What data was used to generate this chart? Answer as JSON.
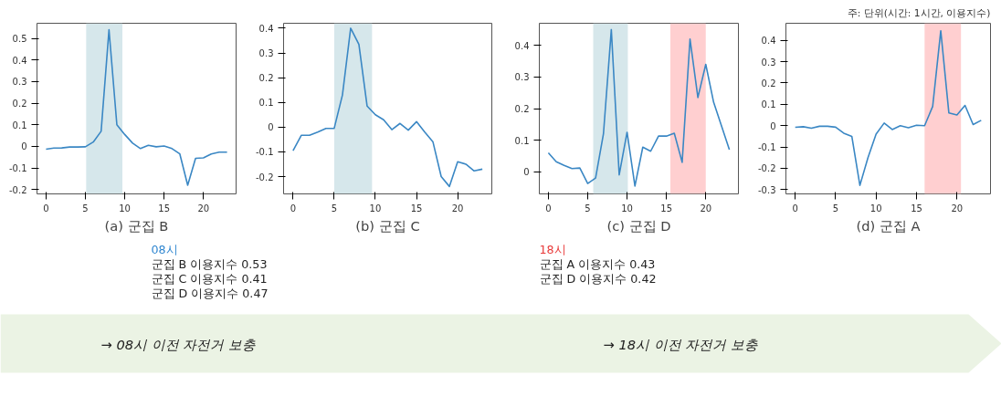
{
  "chart_data": [
    {
      "type": "line",
      "xlabel": "(a) 군집 B",
      "x": [
        0,
        1,
        2,
        3,
        4,
        5,
        6,
        7,
        8,
        9,
        10,
        11,
        12,
        13,
        14,
        15,
        16,
        17,
        18,
        19,
        20,
        21,
        22,
        23
      ],
      "series": [
        {
          "color": "#3a87c4",
          "values": [
            -0.013,
            -0.008,
            -0.007,
            -0.003,
            -0.003,
            -0.002,
            0.02,
            0.07,
            0.54,
            0.1,
            0.055,
            0.015,
            -0.01,
            0.005,
            -0.002,
            0.002,
            -0.01,
            -0.035,
            -0.18,
            -0.055,
            -0.053,
            -0.035,
            -0.027,
            -0.027
          ]
        }
      ],
      "xlim": [
        -1.15,
        24.15
      ],
      "xticks": [
        0,
        5,
        10,
        15,
        20
      ],
      "ylim": [
        -0.22,
        0.57
      ],
      "yticks": [
        -0.2,
        -0.1,
        0.0,
        0.1,
        0.2,
        0.3,
        0.4,
        0.5
      ],
      "bands": [
        {
          "axis": "x",
          "from": 5.1,
          "to": 9.7,
          "color": "#d6e7eb"
        }
      ],
      "grid": false,
      "annotations": [
        "08시",
        "군집 B 이용지수 0.53",
        "군집 C 이용지수 0.41",
        "군집 D 이용지수 0.47",
        "→ 08시 이전 자전거 보충"
      ]
    },
    {
      "type": "line",
      "xlabel": "(b) 군집 C",
      "x": [
        0,
        1,
        2,
        3,
        4,
        5,
        6,
        7,
        8,
        9,
        10,
        11,
        12,
        13,
        14,
        15,
        16,
        17,
        18,
        19,
        20,
        21,
        22,
        23
      ],
      "series": [
        {
          "color": "#3a87c4",
          "values": [
            -0.095,
            -0.033,
            -0.033,
            -0.02,
            -0.005,
            -0.005,
            0.13,
            0.4,
            0.335,
            0.085,
            0.05,
            0.03,
            -0.01,
            0.015,
            -0.012,
            0.022,
            -0.02,
            -0.06,
            -0.2,
            -0.24,
            -0.14,
            -0.15,
            -0.177,
            -0.17
          ]
        }
      ],
      "xlim": [
        -1.15,
        24.15
      ],
      "xticks": [
        0,
        5,
        10,
        15,
        20
      ],
      "ylim": [
        -0.27,
        0.42
      ],
      "yticks": [
        -0.2,
        -0.1,
        0.0,
        0.1,
        0.2,
        0.3,
        0.4
      ],
      "bands": [
        {
          "axis": "x",
          "from": 5.0,
          "to": 9.6,
          "color": "#d6e7eb"
        }
      ],
      "grid": false
    },
    {
      "type": "line",
      "xlabel": "(c) 군집 D",
      "x": [
        0,
        1,
        2,
        3,
        4,
        5,
        6,
        7,
        8,
        9,
        10,
        11,
        12,
        13,
        14,
        15,
        16,
        17,
        18,
        19,
        20,
        21,
        22,
        23
      ],
      "series": [
        {
          "color": "#3a87c4",
          "values": [
            0.06,
            0.032,
            0.02,
            0.01,
            0.012,
            -0.037,
            -0.02,
            0.12,
            0.45,
            -0.01,
            0.125,
            -0.045,
            0.078,
            0.065,
            0.113,
            0.113,
            0.122,
            0.03,
            0.42,
            0.235,
            0.34,
            0.22,
            0.145,
            0.07
          ]
        }
      ],
      "xlim": [
        -1.15,
        24.15
      ],
      "xticks": [
        0,
        5,
        10,
        15,
        20
      ],
      "ylim": [
        -0.07,
        0.47
      ],
      "yticks": [
        0.0,
        0.1,
        0.2,
        0.3,
        0.4
      ],
      "bands": [
        {
          "axis": "x",
          "from": 5.7,
          "to": 10.1,
          "color": "#d6e7eb"
        },
        {
          "axis": "x",
          "from": 15.5,
          "to": 20.0,
          "color": "#ffcfd0"
        }
      ],
      "grid": false,
      "annotations": [
        "18시",
        "군집 A 이용지수 0.43",
        "군집 D 이용지수 0.42",
        "→ 18시 이전 자전거 보충"
      ]
    },
    {
      "type": "line",
      "xlabel": "(d) 군집 A",
      "subtitle": "주: 단위(시간: 1시간, 이용지수)",
      "x": [
        0,
        1,
        2,
        3,
        4,
        5,
        6,
        7,
        8,
        9,
        10,
        11,
        12,
        13,
        14,
        15,
        16,
        17,
        18,
        19,
        20,
        21,
        22,
        23
      ],
      "series": [
        {
          "color": "#3a87c4",
          "values": [
            -0.008,
            -0.005,
            -0.012,
            -0.003,
            -0.003,
            -0.007,
            -0.035,
            -0.05,
            -0.28,
            -0.15,
            -0.04,
            0.012,
            -0.018,
            0.0,
            -0.01,
            0.002,
            0.0,
            0.09,
            0.445,
            0.06,
            0.05,
            0.095,
            0.005,
            0.025
          ]
        }
      ],
      "xlim": [
        -1.15,
        24.15
      ],
      "xticks": [
        0,
        5,
        10,
        15,
        20
      ],
      "ylim": [
        -0.32,
        0.48
      ],
      "yticks": [
        -0.3,
        -0.2,
        -0.1,
        0.0,
        0.1,
        0.2,
        0.3,
        0.4
      ],
      "bands": [
        {
          "axis": "x",
          "from": 16.0,
          "to": 20.5,
          "color": "#ffcfd0"
        }
      ],
      "grid": false
    }
  ]
}
